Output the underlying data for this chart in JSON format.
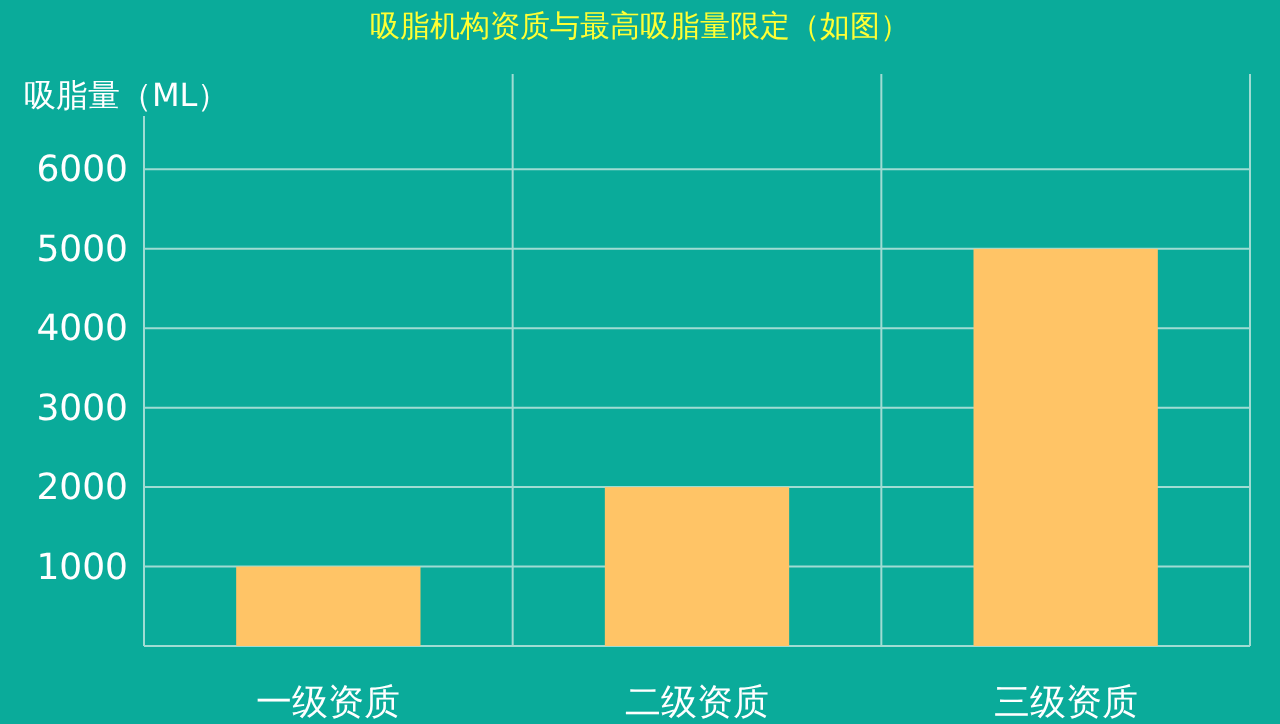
{
  "chart_data": {
    "type": "bar",
    "title": "吸脂机构资质与最高吸脂量限定（如图）",
    "ylabel": "吸脂量（ML）",
    "categories": [
      "一级资质",
      "二级资质",
      "三级资质"
    ],
    "values": [
      1000,
      2000,
      5000
    ],
    "color": "#ffc466",
    "ylim": [
      0,
      7200
    ],
    "yticks": [
      {
        "value": 0,
        "label": null
      },
      1000,
      2000,
      3000,
      4000,
      5000,
      6000
    ],
    "grid": true
  }
}
